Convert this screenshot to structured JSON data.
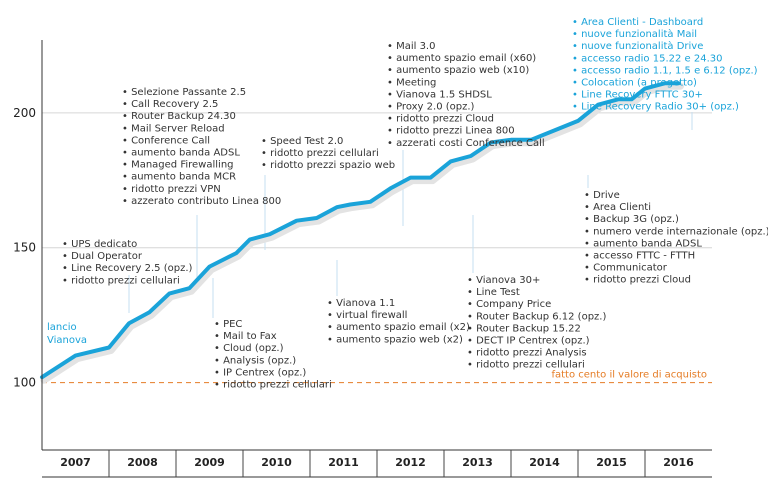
{
  "chart_data": {
    "type": "line",
    "title": "",
    "xlabel": "",
    "ylabel": "",
    "years": [
      "2007",
      "2008",
      "2009",
      "2010",
      "2011",
      "2012",
      "2013",
      "2014",
      "2015",
      "2016"
    ],
    "yticks": [
      100,
      150,
      200
    ],
    "ylim": [
      75,
      227
    ],
    "xlim": [
      2007.0,
      2017.0
    ],
    "x": [
      2007.0,
      2007.5,
      2008.0,
      2008.3,
      2008.6,
      2008.9,
      2009.2,
      2009.5,
      2009.9,
      2010.1,
      2010.4,
      2010.8,
      2011.1,
      2011.4,
      2011.6,
      2011.9,
      2012.2,
      2012.5,
      2012.8,
      2013.1,
      2013.4,
      2013.7,
      2014.0,
      2014.3,
      2014.7,
      2015.0,
      2015.3,
      2015.6,
      2015.8,
      2016.0,
      2016.3,
      2016.5
    ],
    "values": [
      102,
      110,
      113,
      122,
      126,
      133,
      135,
      143,
      148,
      153,
      155,
      160,
      161,
      165,
      166,
      167,
      172,
      176,
      176,
      182,
      184,
      189,
      190,
      190,
      194,
      197,
      203,
      205,
      205,
      209,
      211,
      211
    ],
    "reference": {
      "value": 100,
      "label": "fatto cento il valore di acquisto",
      "color": "#e57c25"
    },
    "line_color": "#1aa3d9",
    "start_label": [
      "lancio",
      "Vianova"
    ],
    "annotations": [
      {
        "id": "2007",
        "items": [
          "UPS dedicato",
          "Dual Operator",
          "Line Recovery 2.5 (opz.)",
          "ridotto prezzi cellulari"
        ]
      },
      {
        "id": "2008",
        "items": [
          "Selezione Passante 2.5",
          "Call Recovery 2.5",
          "Router Backup 24.30",
          "Mail Server Reload",
          "Conference Call",
          "aumento banda ADSL",
          "Managed Firewalling",
          "aumento banda MCR",
          "ridotto prezzi VPN",
          "azzerato contributo Linea 800"
        ]
      },
      {
        "id": "2009",
        "items": [
          "PEC",
          "Mail to Fax",
          "Cloud (opz.)",
          "Analysis (opz.)",
          "IP Centrex (opz.)",
          "ridotto prezzi cellulari"
        ]
      },
      {
        "id": "2010",
        "items": [
          "Speed Test 2.0",
          "ridotto prezzi cellulari",
          "ridotto prezzi spazio web"
        ]
      },
      {
        "id": "2011",
        "items": [
          "Vianova 1.1",
          "virtual firewall",
          "aumento spazio email (x2)",
          "aumento spazio web (x2)"
        ]
      },
      {
        "id": "2012",
        "items": [
          "Mail 3.0",
          "aumento spazio email (x60)",
          "aumento spazio web (x10)",
          "Meeting",
          "Vianova 1.5 SHDSL",
          "Proxy 2.0 (opz.)",
          "ridotto prezzi Cloud",
          "ridotto prezzi Linea 800",
          "azzerati costi Conference Call"
        ]
      },
      {
        "id": "2013",
        "items": [
          "Vianova 30+",
          "Line Test",
          "Company Price",
          "Router Backup 6.12 (opz.)",
          "Router Backup 15.22",
          "DECT IP Centrex (opz.)",
          "ridotto prezzi Analysis",
          "ridotto prezzi cellulari"
        ]
      },
      {
        "id": "2015",
        "items": [
          "Drive",
          "Area Clienti",
          "Backup 3G (opz.)",
          "numero verde internazionale (opz.)",
          "aumento banda ADSL",
          "accesso FTTC - FTTH",
          "Communicator",
          "ridotto prezzi Cloud"
        ]
      },
      {
        "id": "2016",
        "items": [
          "Area Clienti - Dashboard",
          "nuove funzionalità Mail",
          "nuove funzionalità Drive",
          "accesso radio 15.22 e 24.30",
          "accesso radio 1.1, 1.5 e 6.12 (opz.)",
          "Colocation (a progetto)",
          "Line Recovery FTTC 30+",
          "Line Recovery Radio 30+ (opz.)"
        ],
        "highlight": true
      }
    ]
  }
}
